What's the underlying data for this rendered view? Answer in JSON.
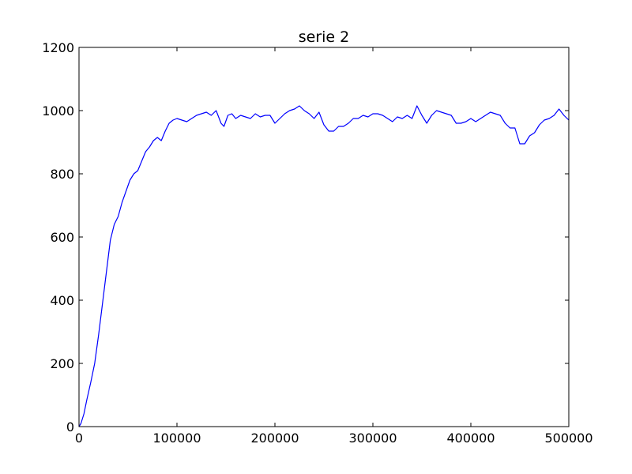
{
  "chart_data": {
    "type": "line",
    "title": "serie 2",
    "xlabel": "",
    "ylabel": "",
    "xlim": [
      0,
      500000
    ],
    "ylim": [
      0,
      1200
    ],
    "xticks": [
      0,
      100000,
      200000,
      300000,
      400000,
      500000
    ],
    "yticks": [
      0,
      200,
      400,
      600,
      800,
      1000,
      1200
    ],
    "xtick_labels": [
      "0",
      "100000",
      "200000",
      "300000",
      "400000",
      "500000"
    ],
    "ytick_labels": [
      "0",
      "200",
      "400",
      "600",
      "800",
      "1000",
      "1200"
    ],
    "grid": false,
    "legend": "none",
    "series": [
      {
        "color": "#0000ff",
        "x": [
          0,
          2000,
          5000,
          8000,
          12000,
          16000,
          20000,
          24000,
          28000,
          32000,
          36000,
          40000,
          44000,
          48000,
          52000,
          56000,
          60000,
          64000,
          68000,
          72000,
          76000,
          80000,
          84000,
          88000,
          92000,
          96000,
          100000,
          105000,
          110000,
          115000,
          120000,
          125000,
          130000,
          135000,
          140000,
          145000,
          148000,
          152000,
          156000,
          160000,
          165000,
          170000,
          175000,
          180000,
          185000,
          190000,
          195000,
          200000,
          205000,
          210000,
          215000,
          220000,
          225000,
          230000,
          235000,
          240000,
          245000,
          250000,
          255000,
          260000,
          265000,
          270000,
          275000,
          280000,
          285000,
          290000,
          295000,
          300000,
          305000,
          310000,
          315000,
          320000,
          325000,
          330000,
          335000,
          340000,
          345000,
          350000,
          355000,
          360000,
          365000,
          370000,
          375000,
          380000,
          385000,
          390000,
          395000,
          400000,
          405000,
          410000,
          415000,
          420000,
          425000,
          430000,
          435000,
          440000,
          445000,
          450000,
          455000,
          460000,
          465000,
          470000,
          475000,
          480000,
          485000,
          490000,
          495000,
          500000
        ],
        "y": [
          0,
          10,
          40,
          85,
          140,
          200,
          290,
          390,
          490,
          590,
          640,
          665,
          710,
          745,
          780,
          800,
          810,
          840,
          870,
          885,
          905,
          915,
          905,
          935,
          960,
          970,
          975,
          970,
          965,
          975,
          985,
          990,
          995,
          985,
          1000,
          960,
          950,
          985,
          990,
          975,
          985,
          980,
          975,
          990,
          980,
          985,
          985,
          960,
          975,
          990,
          1000,
          1005,
          1015,
          1000,
          990,
          975,
          995,
          955,
          935,
          935,
          950,
          950,
          960,
          975,
          975,
          985,
          980,
          990,
          990,
          985,
          975,
          965,
          980,
          975,
          985,
          975,
          1015,
          985,
          960,
          985,
          1000,
          995,
          990,
          985,
          960,
          960,
          965,
          975,
          965,
          975,
          985,
          995,
          990,
          985,
          960,
          945,
          945,
          895,
          895,
          920,
          930,
          955,
          970,
          975,
          985,
          1005,
          985,
          970
        ]
      }
    ]
  }
}
